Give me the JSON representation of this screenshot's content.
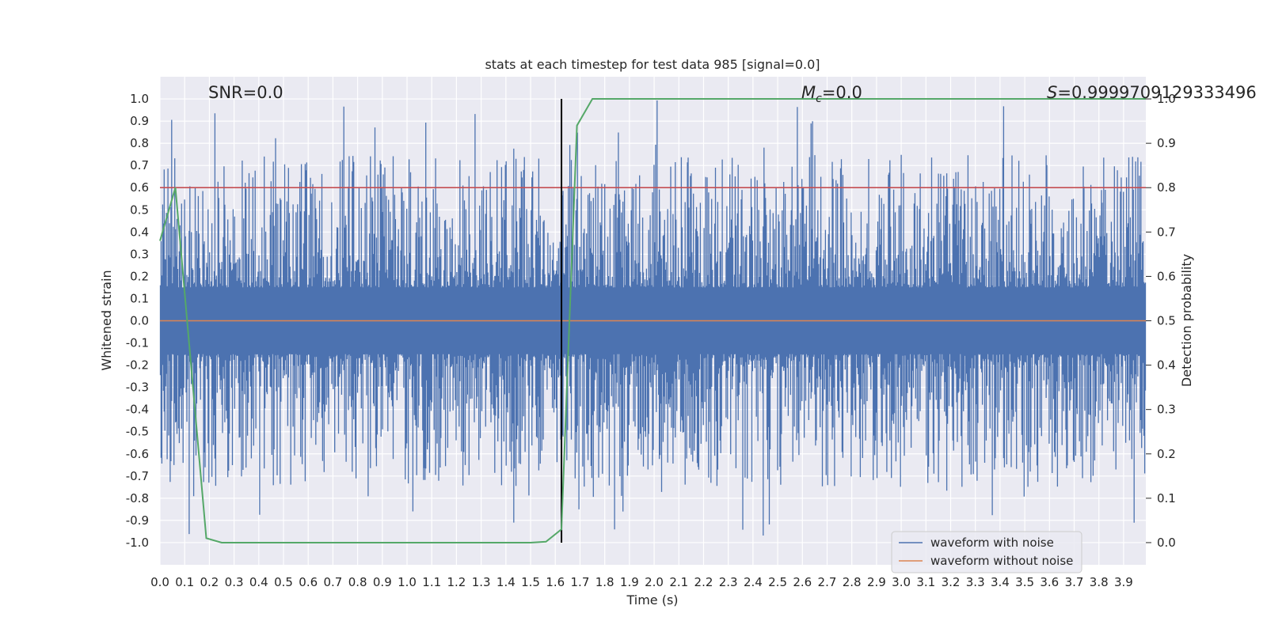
{
  "chart_data": {
    "type": "line",
    "title": "stats at each timestep for test data 985 [signal=0.0]",
    "xlabel": "Time (s)",
    "ylabel": "Whitened strain",
    "y2label": "Detection probability",
    "xlim": [
      0.0,
      3.99
    ],
    "ylim": [
      -1.1,
      1.1
    ],
    "y2lim": [
      -0.05,
      1.05
    ],
    "x_ticks": [
      "0.0",
      "0.1",
      "0.2",
      "0.3",
      "0.4",
      "0.5",
      "0.6",
      "0.7",
      "0.8",
      "0.9",
      "1.0",
      "1.1",
      "1.2",
      "1.3",
      "1.4",
      "1.5",
      "1.6",
      "1.7",
      "1.8",
      "1.9",
      "2.0",
      "2.1",
      "2.2",
      "2.3",
      "2.4",
      "2.5",
      "2.6",
      "2.7",
      "2.8",
      "2.9",
      "3.0",
      "3.1",
      "3.2",
      "3.3",
      "3.4",
      "3.5",
      "3.6",
      "3.7",
      "3.8",
      "3.9"
    ],
    "y_ticks": [
      "1.0",
      "0.9",
      "0.8",
      "0.7",
      "0.6",
      "0.5",
      "0.4",
      "0.3",
      "0.2",
      "0.1",
      "0.0",
      "-0.1",
      "-0.2",
      "-0.3",
      "-0.4",
      "-0.5",
      "-0.6",
      "-0.7",
      "-0.8",
      "-0.9",
      "-1.0"
    ],
    "y2_ticks": [
      "1.0",
      "0.9",
      "0.8",
      "0.7",
      "0.6",
      "0.5",
      "0.4",
      "0.3",
      "0.2",
      "0.1",
      "0.0"
    ],
    "grid": true,
    "legend_position": "lower-right",
    "annotations": {
      "snr": "SNR=0.0",
      "mc_symbol": "M",
      "mc_sub": "c",
      "mc_value": "=0.0",
      "s_symbol": "S",
      "s_value": "=0.9999709129333496"
    },
    "series": [
      {
        "name": "waveform with noise",
        "color": "#4c72b0",
        "description_values": "whitened noise strain, dense random samples spanning roughly -0.98 to 1.0"
      },
      {
        "name": "waveform without noise",
        "color": "#dd8452",
        "x": [
          0.0,
          3.99
        ],
        "y": [
          0.0,
          0.0
        ]
      },
      {
        "name": "detection probability",
        "axis": "right",
        "color": "#55a868",
        "x": [
          0.0,
          0.0625,
          0.1875,
          0.25,
          1.5,
          1.5625,
          1.625,
          1.6875,
          1.75,
          3.99
        ],
        "y": [
          0.68,
          0.8,
          0.01,
          0.0,
          0.0,
          0.002,
          0.03,
          0.94,
          1.0,
          1.0
        ]
      }
    ],
    "threshold_line": {
      "y": 0.8,
      "color": "#c44e52"
    },
    "marker_line": {
      "x": 1.625,
      "y_range": [
        -1.0,
        1.0
      ],
      "color": "#000000"
    }
  }
}
